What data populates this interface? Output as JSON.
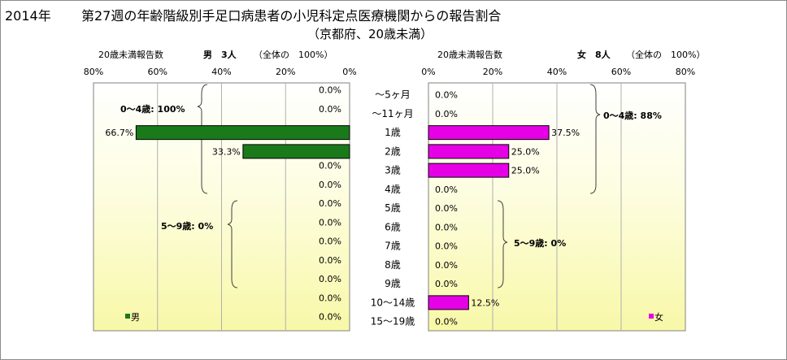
{
  "header": {
    "year": "2014年",
    "title": "第27週の年齢階級別手足口病患者の小児科定点医療機関からの報告割合",
    "subtitle": "（京都府、20歳未満）"
  },
  "left_panel": {
    "caption": "20歳未満報告数",
    "gender_count": "男　3人",
    "scope": "（全体の　100%）",
    "legend": "男",
    "bracket_0_4": "0～4歳: 100%",
    "bracket_5_9": "5～9歳: 0%",
    "ticks": [
      "80%",
      "60%",
      "40%",
      "20%",
      "0%"
    ]
  },
  "right_panel": {
    "caption": "20歳未満報告数",
    "gender_count": "女　8人",
    "scope": "（全体の　100%）",
    "legend": "女",
    "bracket_0_4": "0～4歳: 88%",
    "bracket_5_9": "5～9歳: 0%",
    "ticks": [
      "0%",
      "20%",
      "40%",
      "60%",
      "80%"
    ]
  },
  "chart_data": {
    "type": "bar",
    "categories": [
      "～5ヶ月",
      "～11ヶ月",
      "1歳",
      "2歳",
      "3歳",
      "4歳",
      "5歳",
      "6歳",
      "7歳",
      "8歳",
      "9歳",
      "10～14歳",
      "15～19歳"
    ],
    "series": [
      {
        "name": "男",
        "values": [
          0.0,
          0.0,
          66.7,
          33.3,
          0.0,
          0.0,
          0.0,
          0.0,
          0.0,
          0.0,
          0.0,
          0.0,
          0.0
        ],
        "labels": [
          "0.0%",
          "0.0%",
          "66.7%",
          "33.3%",
          "0.0%",
          "0.0%",
          "0.0%",
          "0.0%",
          "0.0%",
          "0.0%",
          "0.0%",
          "0.0%",
          "0.0%"
        ],
        "color": "#1a7a1a"
      },
      {
        "name": "女",
        "values": [
          0.0,
          0.0,
          37.5,
          25.0,
          25.0,
          0.0,
          0.0,
          0.0,
          0.0,
          0.0,
          0.0,
          12.5,
          0.0
        ],
        "labels": [
          "0.0%",
          "0.0%",
          "37.5%",
          "25.0%",
          "25.0%",
          "0.0%",
          "0.0%",
          "0.0%",
          "0.0%",
          "0.0%",
          "0.0%",
          "12.5%",
          "0.0%"
        ],
        "color": "#e600e6"
      }
    ],
    "xlim": [
      0,
      80
    ],
    "grid": true,
    "legend_position": "bottom-right"
  }
}
